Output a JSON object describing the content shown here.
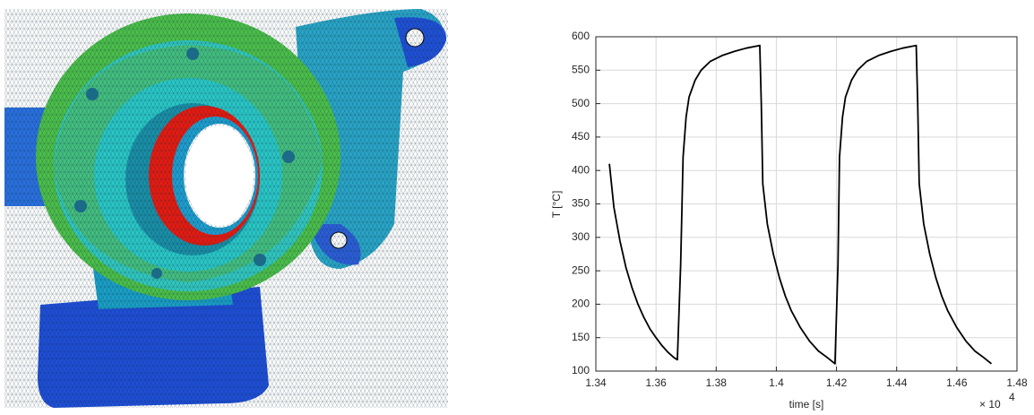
{
  "chart_data": {
    "type": "line",
    "xlabel": "time [s]",
    "ylabel": "T [°C]",
    "x_multiplier": "× 10",
    "x_exponent": "4",
    "xlim": [
      1.34,
      1.48
    ],
    "xticks": [
      1.34,
      1.36,
      1.38,
      1.4,
      1.42,
      1.44,
      1.46,
      1.48
    ],
    "ylim": [
      100,
      600
    ],
    "yticks": [
      100,
      150,
      200,
      250,
      300,
      350,
      400,
      450,
      500,
      550,
      600
    ],
    "grid": true,
    "color": "#000000",
    "x": [
      1.3445,
      1.346,
      1.348,
      1.35,
      1.352,
      1.354,
      1.356,
      1.358,
      1.36,
      1.362,
      1.364,
      1.366,
      1.3671,
      1.3682,
      1.369,
      1.37,
      1.371,
      1.373,
      1.375,
      1.378,
      1.382,
      1.386,
      1.39,
      1.3945,
      1.395,
      1.3955,
      1.397,
      1.399,
      1.401,
      1.403,
      1.405,
      1.408,
      1.411,
      1.414,
      1.417,
      1.4195,
      1.4205,
      1.421,
      1.422,
      1.423,
      1.425,
      1.427,
      1.43,
      1.434,
      1.438,
      1.442,
      1.4465,
      1.447,
      1.4475,
      1.449,
      1.451,
      1.453,
      1.455,
      1.457,
      1.46,
      1.463,
      1.466,
      1.469,
      1.4715
    ],
    "values": [
      410,
      345,
      295,
      255,
      225,
      200,
      180,
      163,
      150,
      138,
      128,
      120,
      117,
      260,
      420,
      480,
      510,
      535,
      550,
      563,
      572,
      578,
      583,
      587,
      500,
      380,
      320,
      275,
      240,
      212,
      190,
      165,
      145,
      130,
      120,
      111,
      260,
      420,
      480,
      510,
      535,
      550,
      563,
      572,
      578,
      583,
      587,
      500,
      380,
      320,
      275,
      240,
      212,
      190,
      165,
      145,
      130,
      120,
      111
    ]
  }
}
